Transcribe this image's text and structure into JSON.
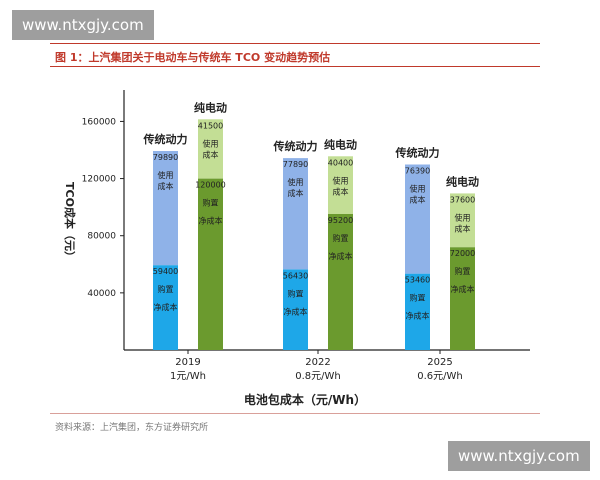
{
  "watermark": "www.ntxgjy.com",
  "figure_title": "图 1：上汽集团关于电动车与传统车 TCO 变动趋势预估",
  "source": "资料来源：上汽集团，东方证券研究所",
  "chart_data": {
    "type": "bar",
    "stacked": true,
    "ylabel": "TCO成本（元）",
    "xlabel": "电池包成本（元/Wh）",
    "ylim": [
      0,
      175000
    ],
    "yticks": [
      40000,
      80000,
      120000,
      160000
    ],
    "groups": [
      {
        "year": "2019",
        "cost": "1元/Wh",
        "bars": [
          {
            "label": "传统动力",
            "purchase": 59400,
            "use": 79890,
            "purchase_color": "#1ea7e8",
            "use_color": "#8fb2e8"
          },
          {
            "label": "纯电动",
            "purchase": 120000,
            "use": 41500,
            "purchase_color": "#6b9a2e",
            "use_color": "#c3de95"
          }
        ]
      },
      {
        "year": "2022",
        "cost": "0.8元/Wh",
        "bars": [
          {
            "label": "传统动力",
            "purchase": 56430,
            "use": 77890,
            "purchase_color": "#1ea7e8",
            "use_color": "#8fb2e8"
          },
          {
            "label": "纯电动",
            "purchase": 95200,
            "use": 40400,
            "purchase_color": "#6b9a2e",
            "use_color": "#c3de95"
          }
        ]
      },
      {
        "year": "2025",
        "cost": "0.6元/Wh",
        "bars": [
          {
            "label": "传统动力",
            "purchase": 53460,
            "use": 76390,
            "purchase_color": "#1ea7e8",
            "use_color": "#8fb2e8"
          },
          {
            "label": "纯电动",
            "purchase": 72000,
            "use": 37600,
            "purchase_color": "#6b9a2e",
            "use_color": "#c3de95"
          }
        ]
      }
    ],
    "segment_labels": {
      "use": [
        "使用",
        "成本"
      ],
      "purchase": [
        "购置",
        "净成本"
      ]
    }
  }
}
